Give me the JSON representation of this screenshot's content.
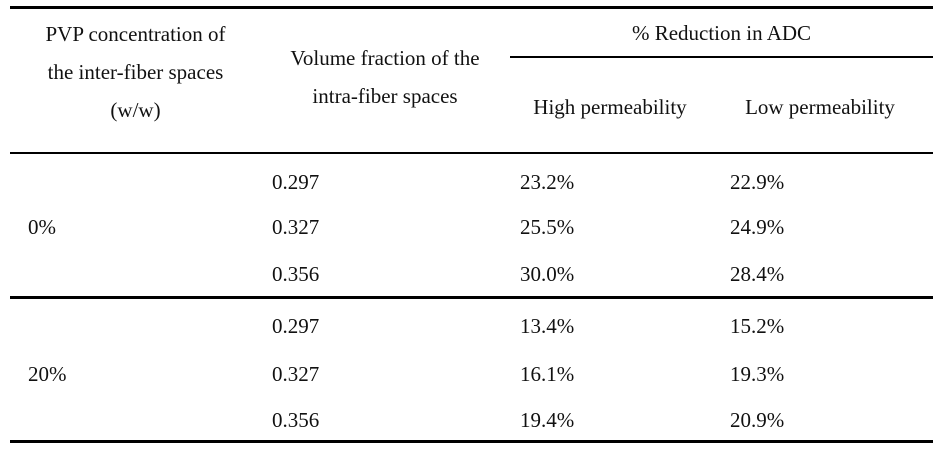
{
  "table": {
    "headers": {
      "col1_lines": [
        "PVP concentration of",
        "the inter-fiber spaces",
        "(w/w)"
      ],
      "col2_lines": [
        "Volume fraction of the",
        "intra-fiber spaces"
      ],
      "group": "% Reduction in ADC",
      "sub_high": "High permeability",
      "sub_low": "Low permeability"
    },
    "groups": [
      {
        "pvp": "0%",
        "rows": [
          {
            "volume": "0.297",
            "high": "23.2%",
            "low": "22.9%"
          },
          {
            "volume": "0.327",
            "high": "25.5%",
            "low": "24.9%"
          },
          {
            "volume": "0.356",
            "high": "30.0%",
            "low": "28.4%"
          }
        ]
      },
      {
        "pvp": "20%",
        "rows": [
          {
            "volume": "0.297",
            "high": "13.4%",
            "low": "15.2%"
          },
          {
            "volume": "0.327",
            "high": "16.1%",
            "low": "19.3%"
          },
          {
            "volume": "0.356",
            "high": "19.4%",
            "low": "20.9%"
          }
        ]
      }
    ]
  }
}
